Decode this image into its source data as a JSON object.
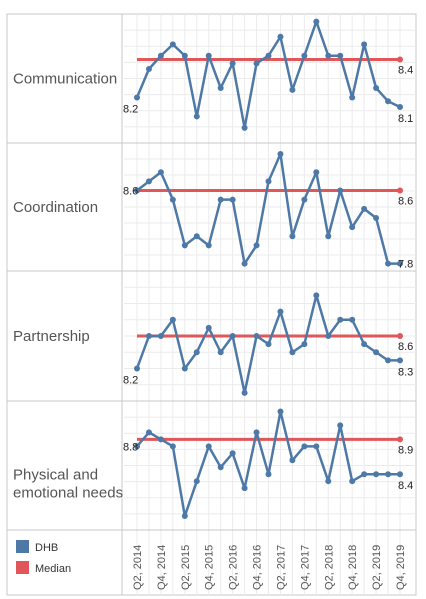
{
  "colors": {
    "dhb": "#4e79a7",
    "median": "#e15759",
    "grid": "#ebebeb",
    "border": "#c8c8c8"
  },
  "legend": [
    {
      "label": "DHB",
      "color": "#4e79a7"
    },
    {
      "label": "Median",
      "color": "#e15759"
    }
  ],
  "chart_data": {
    "type": "line",
    "x": [
      "Q2, 2014",
      "Q3, 2014",
      "Q4, 2014",
      "Q1, 2015",
      "Q2, 2015",
      "Q3, 2015",
      "Q4, 2015",
      "Q1, 2016",
      "Q2, 2016",
      "Q3, 2016",
      "Q4, 2016",
      "Q1, 2017",
      "Q2, 2017",
      "Q3, 2017",
      "Q4, 2017",
      "Q1, 2018",
      "Q2, 2018",
      "Q3, 2018",
      "Q4, 2018",
      "Q1, 2019",
      "Q2, 2019",
      "Q3, 2019",
      "Q4, 2019"
    ],
    "x_tick_labels": [
      "Q2, 2014",
      "Q4, 2014",
      "Q2, 2015",
      "Q4, 2015",
      "Q2, 2016",
      "Q4, 2016",
      "Q2, 2017",
      "Q4, 2017",
      "Q2, 2018",
      "Q4, 2018",
      "Q2, 2019",
      "Q4, 2019"
    ],
    "panels": [
      {
        "name": "Communication",
        "ylim": [
          7.96,
          8.64
        ],
        "median": 8.4,
        "series": [
          {
            "name": "DHB",
            "values": [
              8.2,
              8.35,
              8.42,
              8.48,
              8.42,
              8.1,
              8.42,
              8.25,
              8.38,
              8.04,
              8.38,
              8.42,
              8.52,
              8.24,
              8.42,
              8.6,
              8.42,
              8.42,
              8.2,
              8.48,
              8.25,
              8.18,
              8.15
            ]
          },
          {
            "name": "Median",
            "values": [
              8.4,
              8.4,
              8.4,
              8.4,
              8.4,
              8.4,
              8.4,
              8.4,
              8.4,
              8.4,
              8.4,
              8.4,
              8.4,
              8.4,
              8.4,
              8.4,
              8.4,
              8.4,
              8.4,
              8.4,
              8.4,
              8.4,
              8.4
            ]
          }
        ],
        "labels": {
          "first": "8.2",
          "median_end": "8.4",
          "last": "8.1"
        }
      },
      {
        "name": "Coordination",
        "ylim": [
          7.72,
          9.12
        ],
        "median": 8.6,
        "series": [
          {
            "name": "DHB",
            "values": [
              8.6,
              8.7,
              8.8,
              8.5,
              8.0,
              8.1,
              8.0,
              8.5,
              8.5,
              7.8,
              8.0,
              8.7,
              9.0,
              8.1,
              8.5,
              8.8,
              8.1,
              8.6,
              8.2,
              8.4,
              8.3,
              7.8,
              7.8
            ]
          },
          {
            "name": "Median",
            "values": [
              8.6,
              8.6,
              8.6,
              8.6,
              8.6,
              8.6,
              8.6,
              8.6,
              8.6,
              8.6,
              8.6,
              8.6,
              8.6,
              8.6,
              8.6,
              8.6,
              8.6,
              8.6,
              8.6,
              8.6,
              8.6,
              8.6,
              8.6
            ]
          }
        ],
        "labels": {
          "first": "8.6",
          "median_end": "8.6",
          "last": "7.8"
        }
      },
      {
        "name": "Partnership",
        "ylim": [
          7.8,
          9.4
        ],
        "median": 8.6,
        "series": [
          {
            "name": "DHB",
            "values": [
              8.2,
              8.6,
              8.6,
              8.8,
              8.2,
              8.4,
              8.7,
              8.4,
              8.6,
              7.9,
              8.6,
              8.5,
              8.9,
              8.4,
              8.5,
              9.1,
              8.6,
              8.8,
              8.8,
              8.5,
              8.4,
              8.3,
              8.3
            ]
          },
          {
            "name": "Median",
            "values": [
              8.6,
              8.6,
              8.6,
              8.6,
              8.6,
              8.6,
              8.6,
              8.6,
              8.6,
              8.6,
              8.6,
              8.6,
              8.6,
              8.6,
              8.6,
              8.6,
              8.6,
              8.6,
              8.6,
              8.6,
              8.6,
              8.6,
              8.6
            ]
          }
        ],
        "labels": {
          "first": "8.2",
          "median_end": "8.6",
          "last": "8.3"
        }
      },
      {
        "name": "Physical and\nemotional needs",
        "ylim": [
          7.6,
          9.45
        ],
        "median": 8.9,
        "series": [
          {
            "name": "DHB",
            "values": [
              8.8,
              9.0,
              8.9,
              8.8,
              7.8,
              8.3,
              8.8,
              8.5,
              8.7,
              8.2,
              9.0,
              8.4,
              9.3,
              8.6,
              8.8,
              8.8,
              8.3,
              9.1,
              8.3,
              8.4,
              8.4,
              8.4,
              8.4
            ]
          },
          {
            "name": "Median",
            "values": [
              8.9,
              8.9,
              8.9,
              8.9,
              8.9,
              8.9,
              8.9,
              8.9,
              8.9,
              8.9,
              8.9,
              8.9,
              8.9,
              8.9,
              8.9,
              8.9,
              8.9,
              8.9,
              8.9,
              8.9,
              8.9,
              8.9,
              8.9
            ]
          }
        ],
        "labels": {
          "first": "8.8",
          "median_end": "8.9",
          "last": "8.4"
        }
      }
    ]
  }
}
